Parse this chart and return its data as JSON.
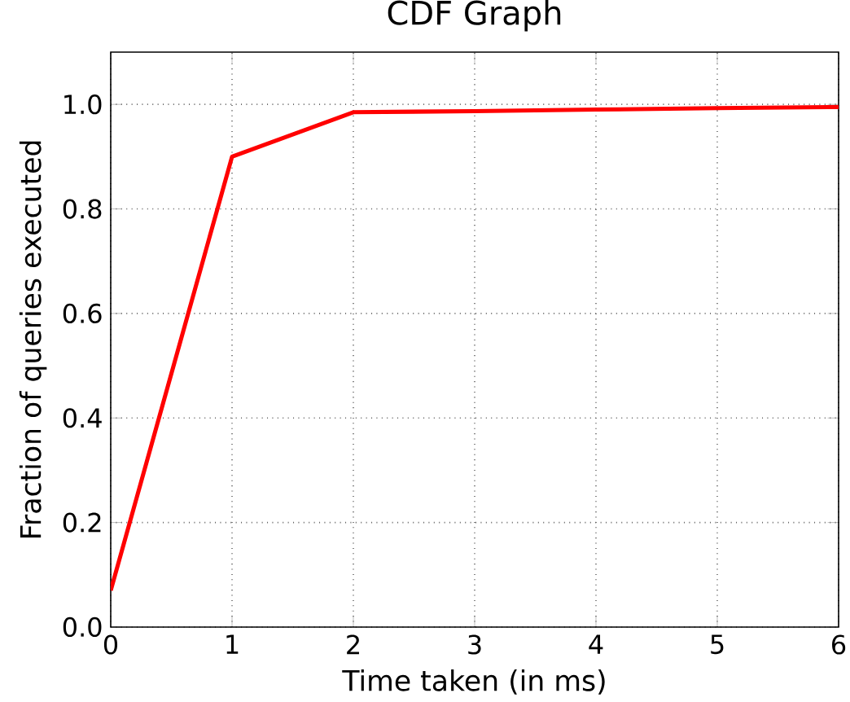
{
  "chart_data": {
    "type": "line",
    "title": "CDF Graph",
    "xlabel": "Time taken (in ms)",
    "ylabel": "Fraction of queries executed",
    "x": [
      0,
      1,
      2,
      3,
      4,
      5,
      6
    ],
    "series": [
      {
        "color": "#ff0000",
        "values": [
          0.07,
          0.9,
          0.985,
          0.987,
          0.99,
          0.993,
          0.995
        ]
      }
    ],
    "xlim": [
      0,
      6
    ],
    "ylim": [
      0,
      1.1
    ],
    "xticks": [
      0,
      1,
      2,
      3,
      4,
      5,
      6
    ],
    "yticks": [
      {
        "value": 0,
        "label": "0.0"
      },
      {
        "value": 0.2,
        "label": "0.2"
      },
      {
        "value": 0.4,
        "label": "0.4"
      },
      {
        "value": 0.6,
        "label": "0.6"
      },
      {
        "value": 0.8,
        "label": "0.8"
      },
      {
        "value": 1.0,
        "label": "1.0"
      }
    ],
    "grid": true,
    "marker": "none",
    "line_style": "solid"
  }
}
